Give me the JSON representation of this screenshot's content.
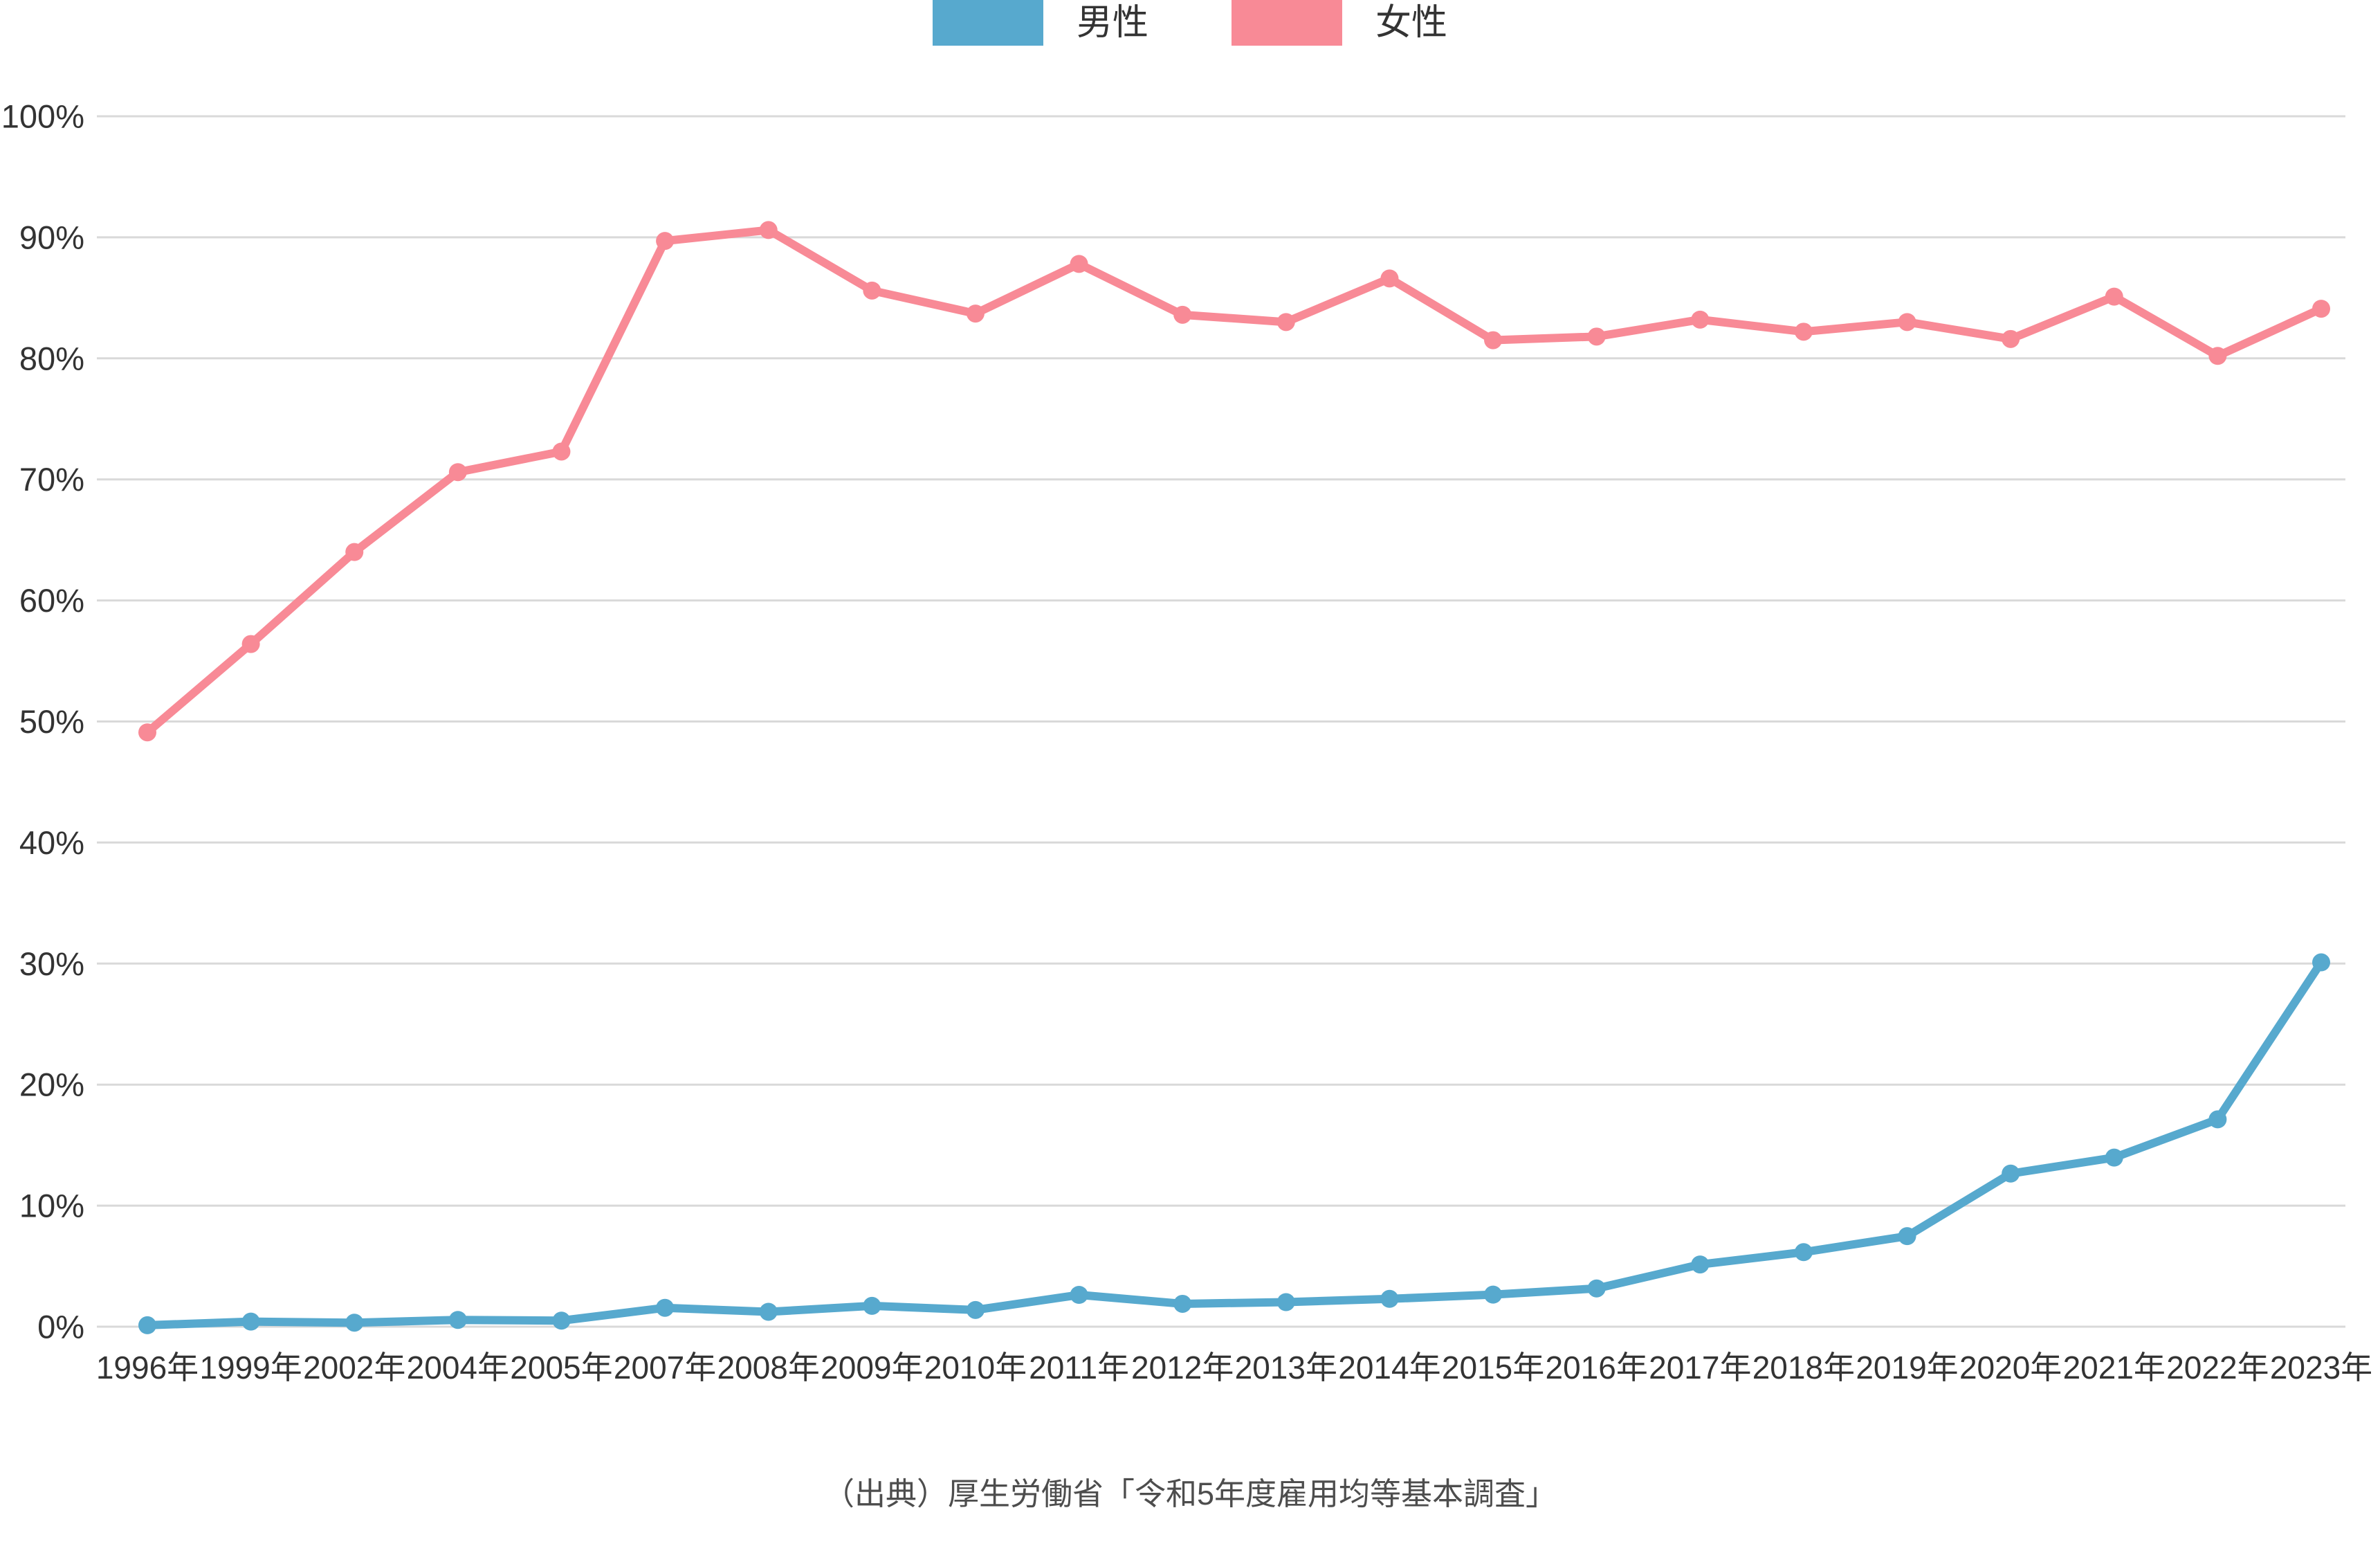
{
  "legend": {
    "items": [
      {
        "label": "男性",
        "color": "#57A9CE"
      },
      {
        "label": "女性",
        "color": "#F88A96"
      }
    ]
  },
  "caption": "（出典）厚生労働省「令和5年度雇用均等基本調査」",
  "colors": {
    "male_series": "#57A9CE",
    "female_series": "#F88A96",
    "gridline": "#D9D9D9",
    "axis_text": "#333333",
    "caption_text": "#4D4D4D",
    "background": "#FFFFFF"
  },
  "chart_data": {
    "type": "line",
    "title": "",
    "xlabel": "",
    "ylabel": "",
    "categories": [
      "1996年",
      "1999年",
      "2002年",
      "2004年",
      "2005年",
      "2007年",
      "2008年",
      "2009年",
      "2010年",
      "2011年",
      "2012年",
      "2013年",
      "2014年",
      "2015年",
      "2016年",
      "2017年",
      "2018年",
      "2019年",
      "2020年",
      "2021年",
      "2022年",
      "2023年"
    ],
    "series": [
      {
        "name": "男性",
        "color": "#57A9CE",
        "values": [
          0.12,
          0.42,
          0.33,
          0.56,
          0.5,
          1.56,
          1.23,
          1.72,
          1.38,
          2.63,
          1.89,
          2.03,
          2.3,
          2.65,
          3.16,
          5.14,
          6.16,
          7.48,
          12.65,
          13.97,
          17.13,
          30.1
        ]
      },
      {
        "name": "女性",
        "color": "#F88A96",
        "values": [
          49.1,
          56.4,
          64.0,
          70.6,
          72.3,
          89.7,
          90.6,
          85.6,
          83.7,
          87.8,
          83.6,
          83.0,
          86.6,
          81.5,
          81.8,
          83.2,
          82.2,
          83.0,
          81.6,
          85.1,
          80.2,
          84.1
        ]
      }
    ],
    "yticks": [
      "0%",
      "10%",
      "20%",
      "30%",
      "40%",
      "50%",
      "60%",
      "70%",
      "80%",
      "90%",
      "100%"
    ],
    "ylim": [
      0,
      100
    ],
    "grid": true,
    "legend_position": "top-center",
    "marker": "circle"
  }
}
